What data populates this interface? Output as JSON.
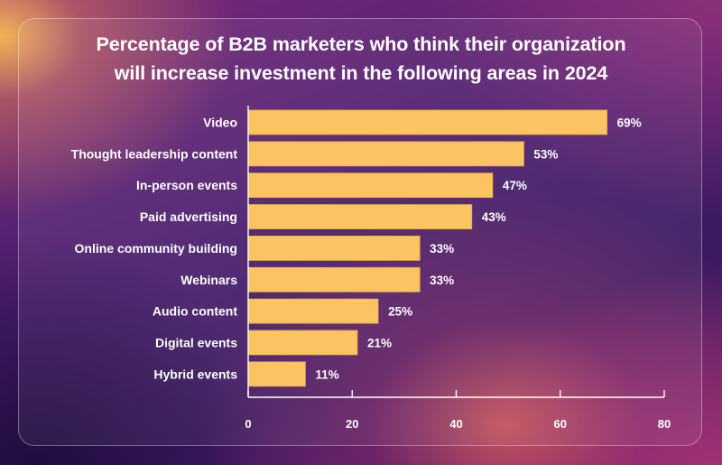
{
  "chart_data": {
    "type": "bar",
    "orientation": "horizontal",
    "title": "Percentage of B2B marketers who think their organization will increase investment in the following areas in 2024",
    "title_lines": [
      "Percentage of B2B marketers who think their organization",
      "will increase investment in the following areas in 2024"
    ],
    "categories": [
      "Video",
      "Thought leadership content",
      "In-person events",
      "Paid advertising",
      "Online community building",
      "Webinars",
      "Audio content",
      "Digital events",
      "Hybrid events"
    ],
    "values": [
      69,
      53,
      47,
      43,
      33,
      33,
      25,
      21,
      11
    ],
    "value_labels": [
      "69%",
      "53%",
      "47%",
      "43%",
      "33%",
      "33%",
      "25%",
      "21%",
      "11%"
    ],
    "xlim": [
      0,
      80
    ],
    "xticks": [
      0,
      20,
      40,
      60,
      80
    ],
    "xtick_labels": [
      "0",
      "20",
      "40",
      "60",
      "80"
    ],
    "xlabel": "",
    "ylabel": "",
    "grid": false,
    "colors": {
      "bar": "#fbc361",
      "bar_stroke": "#e9a948",
      "axis": "#ffffff",
      "text": "#ffffff"
    }
  }
}
